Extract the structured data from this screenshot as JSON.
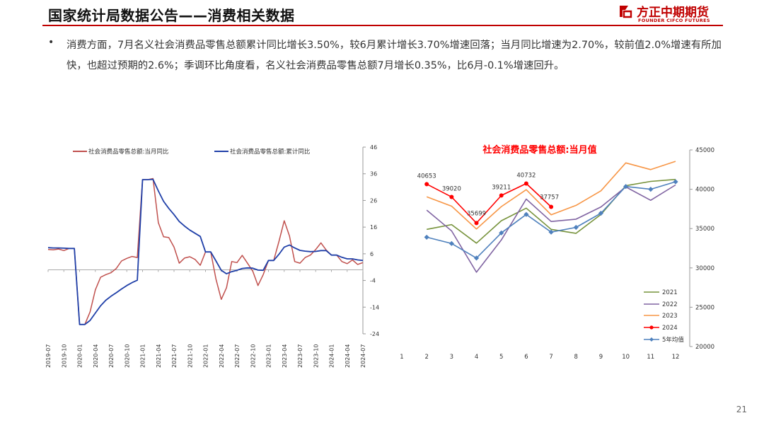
{
  "header": {
    "title": "国家统计局数据公告——消费相关数据",
    "logo_cn": "方正中期期货",
    "logo_en": "FOUNDER CIFCO FUTURES"
  },
  "body": {
    "bullet": "•",
    "paragraph": "消费方面，7月名义社会消费品零售总额累计同比增长3.50%，较6月累计增长3.70%增速回落；当月同比增速为2.70%，较前值2.0%增速有所加快，也超过预期的2.6%；季调环比角度看，名义社会消费品零售总额7月增长0.35%，比6月-0.1%增速回升。"
  },
  "slide_number": "21",
  "colors": {
    "brand": "#c00000",
    "monthly": "#c0504d",
    "cumulative": "#1f3fa8",
    "y2021": "#77933c",
    "y2022": "#8064a2",
    "y2023": "#f79646",
    "y2024": "#ff0000",
    "avg5": "#4f81bd"
  },
  "chart_data": [
    {
      "type": "line",
      "title": "",
      "ylim": [
        -24,
        46
      ],
      "yticks": [
        "46",
        "36",
        "26",
        "16",
        "6",
        "-4",
        "-14",
        "-24"
      ],
      "xtick_labels": [
        "2019-07",
        "2019-10",
        "2020-01",
        "2020-04",
        "2020-07",
        "2020-10",
        "2021-01",
        "2021-04",
        "2021-07",
        "2021-10",
        "2022-01",
        "2022-04",
        "2022-07",
        "2022-10",
        "2023-01",
        "2023-04",
        "2023-07",
        "2023-10",
        "2024-01",
        "2024-04",
        "2024-07"
      ],
      "x": [
        "2019-07",
        "2019-08",
        "2019-09",
        "2019-10",
        "2019-11",
        "2019-12",
        "2020-01",
        "2020-02",
        "2020-03",
        "2020-04",
        "2020-05",
        "2020-06",
        "2020-07",
        "2020-08",
        "2020-09",
        "2020-10",
        "2020-11",
        "2020-12",
        "2021-01",
        "2021-02",
        "2021-03",
        "2021-04",
        "2021-05",
        "2021-06",
        "2021-07",
        "2021-08",
        "2021-09",
        "2021-10",
        "2021-11",
        "2021-12",
        "2022-01",
        "2022-02",
        "2022-03",
        "2022-04",
        "2022-05",
        "2022-06",
        "2022-07",
        "2022-08",
        "2022-09",
        "2022-10",
        "2022-11",
        "2022-12",
        "2023-01",
        "2023-02",
        "2023-03",
        "2023-04",
        "2023-05",
        "2023-06",
        "2023-07",
        "2023-08",
        "2023-09",
        "2023-10",
        "2023-11",
        "2023-12",
        "2024-01",
        "2024-02",
        "2024-03",
        "2024-04",
        "2024-05",
        "2024-06",
        "2024-07"
      ],
      "series": [
        {
          "name": "社会消费品零售总额:当月同比",
          "color": "#c0504d",
          "values": [
            7.6,
            7.5,
            7.8,
            7.2,
            8.0,
            8.0,
            -20.5,
            -20.5,
            -15.8,
            -7.5,
            -2.8,
            -1.8,
            -1.1,
            0.5,
            3.3,
            4.3,
            5.0,
            4.6,
            33.8,
            33.8,
            34.2,
            17.7,
            12.4,
            12.1,
            8.5,
            2.5,
            4.4,
            4.9,
            3.9,
            1.7,
            6.7,
            6.7,
            -3.5,
            -11.1,
            -6.7,
            3.1,
            2.7,
            5.4,
            2.5,
            -0.5,
            -5.9,
            -1.8,
            3.5,
            3.5,
            10.6,
            18.4,
            12.7,
            3.1,
            2.5,
            4.6,
            5.5,
            7.6,
            10.1,
            7.4,
            5.5,
            5.5,
            3.1,
            2.3,
            3.7,
            2.0,
            2.7
          ]
        },
        {
          "name": "社会消费品零售总额:累计同比",
          "color": "#1f3fa8",
          "values": [
            8.3,
            8.2,
            8.2,
            8.1,
            8.0,
            8.0,
            -20.5,
            -20.5,
            -19.0,
            -16.2,
            -13.5,
            -11.4,
            -9.9,
            -8.6,
            -7.2,
            -5.9,
            -4.8,
            -3.9,
            33.8,
            33.8,
            33.9,
            29.6,
            25.7,
            23.0,
            20.7,
            18.1,
            16.4,
            14.9,
            13.7,
            12.5,
            6.7,
            6.7,
            3.3,
            -0.2,
            -1.5,
            -0.7,
            -0.2,
            0.5,
            0.7,
            0.6,
            -0.1,
            -0.2,
            3.5,
            3.5,
            5.8,
            8.5,
            9.3,
            8.2,
            7.3,
            7.0,
            6.8,
            6.9,
            7.2,
            7.2,
            5.5,
            5.5,
            4.7,
            4.1,
            4.1,
            3.7,
            3.5
          ]
        }
      ]
    },
    {
      "type": "line",
      "title": "社会消费品零售总额:当月值",
      "xlabel": "",
      "ylabel": "",
      "ylim": [
        20000,
        45000
      ],
      "yticks": [
        "45000",
        "40000",
        "35000",
        "30000",
        "25000",
        "20000"
      ],
      "x": [
        1,
        2,
        3,
        4,
        5,
        6,
        7,
        8,
        9,
        10,
        11,
        12
      ],
      "series": [
        {
          "name": "2021",
          "color": "#77933c",
          "values": [
            null,
            34900,
            35500,
            33150,
            36000,
            37600,
            34900,
            34400,
            36800,
            40450,
            41000,
            41250
          ]
        },
        {
          "name": "2022",
          "color": "#8064a2",
          "values": [
            null,
            37350,
            34700,
            29450,
            33550,
            38750,
            35900,
            36200,
            37750,
            40300,
            38600,
            40550
          ]
        },
        {
          "name": "2023",
          "color": "#f79646",
          "values": [
            null,
            39050,
            37850,
            34950,
            37800,
            39950,
            36750,
            37950,
            39800,
            43350,
            42500,
            43550
          ]
        },
        {
          "name": "2024",
          "color": "#ff0000",
          "values": [
            null,
            40653,
            39020,
            35699,
            39211,
            40732,
            37757,
            null,
            null,
            null,
            null,
            null
          ],
          "labels": [
            "40653",
            "39020",
            "35699",
            "39211",
            "40732",
            "37757"
          ]
        },
        {
          "name": "5年均值",
          "color": "#4f81bd",
          "values": [
            null,
            33900,
            33100,
            31250,
            34450,
            36800,
            34550,
            35150,
            36950,
            40350,
            40000,
            40950
          ]
        }
      ]
    }
  ]
}
